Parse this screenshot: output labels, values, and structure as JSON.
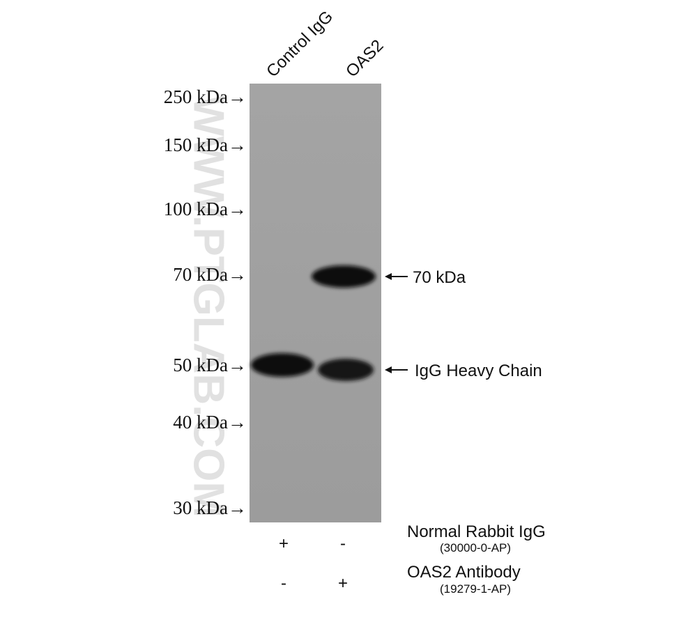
{
  "lanes": [
    "Control IgG",
    "OAS2"
  ],
  "markers": [
    "250 kDa→",
    "150 kDa→",
    "100 kDa→",
    "70 kDa→",
    "50 kDa→",
    "40 kDa→",
    "30 kDa→"
  ],
  "band_labels": [
    "70 kDa",
    "IgG Heavy Chain"
  ],
  "watermark": "WWW.PTGLAB.COM",
  "reagents": [
    {
      "name": "Normal Rabbit IgG",
      "catalog": "(30000-0-AP)",
      "signs": [
        "+",
        "-"
      ]
    },
    {
      "name": "OAS2 Antibody",
      "catalog": "(19279-1-AP)",
      "signs": [
        "-",
        "+"
      ]
    }
  ]
}
